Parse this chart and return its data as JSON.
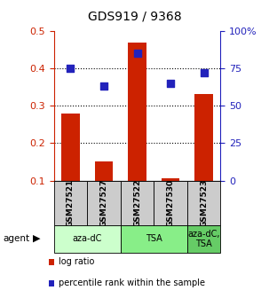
{
  "title": "GDS919 / 9368",
  "samples": [
    "GSM27521",
    "GSM27527",
    "GSM27522",
    "GSM27530",
    "GSM27523"
  ],
  "log_ratio": [
    0.278,
    0.152,
    0.468,
    0.107,
    0.332
  ],
  "percentile_rank": [
    75,
    63,
    85,
    65,
    72
  ],
  "agents": [
    {
      "label": "aza-dC",
      "span": [
        0,
        2
      ],
      "color": "#ccffcc"
    },
    {
      "label": "TSA",
      "span": [
        2,
        4
      ],
      "color": "#88ee88"
    },
    {
      "label": "aza-dC,\nTSA",
      "span": [
        4,
        5
      ],
      "color": "#66cc66"
    }
  ],
  "ylim_left": [
    0.1,
    0.5
  ],
  "ylim_right": [
    0,
    100
  ],
  "yticks_left": [
    0.1,
    0.2,
    0.3,
    0.4,
    0.5
  ],
  "yticks_right": [
    0,
    25,
    50,
    75,
    100
  ],
  "yticklabels_left": [
    "0.1",
    "0.2",
    "0.3",
    "0.4",
    "0.5"
  ],
  "yticklabels_right": [
    "0",
    "25",
    "50",
    "75",
    "100%"
  ],
  "bar_color": "#cc2200",
  "dot_color": "#2222bb",
  "bar_width": 0.55,
  "dot_size": 40,
  "left_tick_color": "#cc2200",
  "right_tick_color": "#2222bb",
  "sample_box_color": "#cccccc",
  "fig_bg": "#ffffff"
}
